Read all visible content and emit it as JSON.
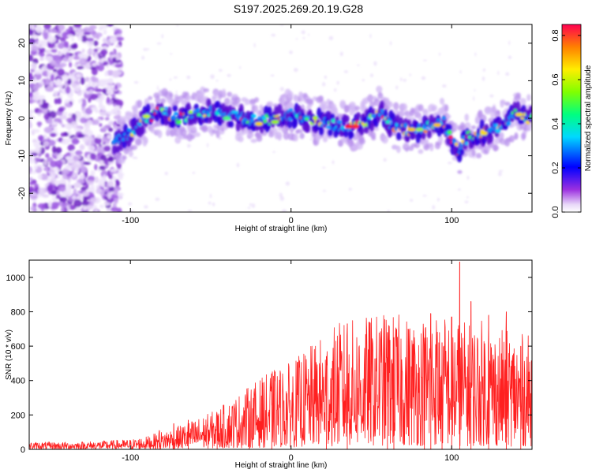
{
  "title": "S197.2025.269.20.19.G28",
  "chart_data": [
    {
      "type": "heatmap",
      "xlabel": "Height of straight line (km)",
      "ylabel": "Frequency (Hz)",
      "xlim": [
        -163,
        150
      ],
      "ylim": [
        -25,
        25
      ],
      "xticks": [
        -100,
        0,
        100
      ],
      "xtick_labels": [
        "-100",
        "0",
        "100"
      ],
      "yticks": [
        -20,
        -10,
        0,
        10,
        20
      ],
      "ytick_labels": [
        "-20",
        "-10",
        "0",
        "10",
        "20"
      ],
      "colorbar": {
        "label": "Normalized spectral amplitude",
        "range": [
          0,
          0.85
        ],
        "ticks": [
          0,
          0.2,
          0.4,
          0.6,
          0.8
        ],
        "tick_labels": [
          "0.0",
          "0.2",
          "0.4",
          "0.6",
          "0.8"
        ],
        "colormap": "rainbow"
      },
      "ridge": {
        "name": "dominant frequency ridge",
        "x": [
          -108,
          -100,
          -90,
          -80,
          -70,
          -60,
          -50,
          -40,
          -30,
          -20,
          -10,
          0,
          10,
          20,
          30,
          40,
          50,
          55,
          60,
          70,
          80,
          90,
          95,
          100,
          104,
          110,
          120,
          130,
          140,
          148
        ],
        "y": [
          -6,
          -4,
          0,
          2,
          0,
          1,
          2,
          1,
          0,
          -1,
          0,
          1,
          0,
          -1,
          -2,
          -2,
          0,
          2,
          -1,
          -3,
          -3,
          -2,
          -1,
          -6,
          -9,
          -5,
          -4,
          -2,
          1,
          0
        ]
      }
    },
    {
      "type": "line",
      "xlabel": "Height of straight line (km)",
      "ylabel": "SNR (10 * v/v)",
      "xlim": [
        -163,
        150
      ],
      "ylim": [
        0,
        1100
      ],
      "xticks": [
        -100,
        0,
        100
      ],
      "xtick_labels": [
        "-100",
        "0",
        "100"
      ],
      "yticks": [
        0,
        200,
        400,
        600,
        800,
        1000
      ],
      "ytick_labels": [
        "0",
        "200",
        "400",
        "600",
        "800",
        "1000"
      ],
      "series": [
        {
          "name": "SNR",
          "color": "#ff2020",
          "envelope_x": [
            -163,
            -140,
            -120,
            -100,
            -90,
            -80,
            -70,
            -60,
            -50,
            -40,
            -30,
            -20,
            -10,
            0,
            10,
            20,
            30,
            40,
            50,
            60,
            70,
            80,
            90,
            100,
            110,
            120,
            130,
            140,
            150
          ],
          "envelope_y": [
            22,
            22,
            25,
            30,
            38,
            55,
            70,
            90,
            110,
            140,
            175,
            210,
            240,
            260,
            300,
            340,
            380,
            390,
            400,
            410,
            400,
            395,
            420,
            400,
            380,
            390,
            360,
            350,
            340
          ],
          "peaks": [
            {
              "x": -82,
              "y": 110
            },
            {
              "x": -73,
              "y": 150
            },
            {
              "x": -64,
              "y": 170
            },
            {
              "x": -46,
              "y": 200
            },
            {
              "x": -26,
              "y": 280
            },
            {
              "x": -12,
              "y": 440
            },
            {
              "x": 22,
              "y": 540
            },
            {
              "x": 35,
              "y": 730
            },
            {
              "x": 60,
              "y": 680
            },
            {
              "x": 64,
              "y": 650
            },
            {
              "x": 83,
              "y": 610
            },
            {
              "x": 87,
              "y": 790
            },
            {
              "x": 94,
              "y": 620
            },
            {
              "x": 100,
              "y": 770
            },
            {
              "x": 105,
              "y": 1090
            },
            {
              "x": 112,
              "y": 860
            },
            {
              "x": 123,
              "y": 780
            },
            {
              "x": 134,
              "y": 800
            },
            {
              "x": 143,
              "y": 600
            }
          ]
        }
      ]
    }
  ]
}
